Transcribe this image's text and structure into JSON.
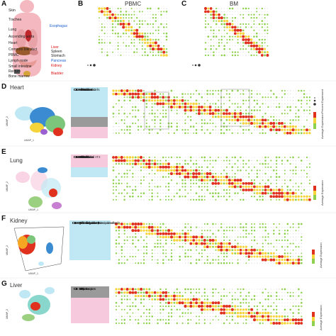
{
  "panels": {
    "A": {
      "label": "A"
    },
    "B": {
      "label": "B",
      "title": "PBMC"
    },
    "C": {
      "label": "C",
      "title": "BM"
    },
    "D": {
      "label": "D",
      "title": "Heart"
    },
    "E": {
      "label": "E",
      "title": "Lung"
    },
    "F": {
      "label": "F",
      "title": "Kidney"
    },
    "G": {
      "label": "G",
      "title": "Liver"
    }
  },
  "organs": [
    "Skin",
    "Trachea",
    "Lung",
    "Ascending aorta",
    "Heart",
    "Common bile duct",
    "PBMC",
    "Lymph node",
    "Small intestine",
    "Rectum",
    "Bone marrow",
    "Esophagus",
    "Liver",
    "Spleen",
    "Stomach",
    "Pancreas",
    "Kidney",
    "Bladder"
  ],
  "heart_legend": [
    "C0: EC1",
    "C1: EC2",
    "C2: EC3",
    "C3: Fibroblast",
    "C4: Fibroblast",
    "C5: Fibroblast",
    "C6: Fibroblast",
    "C7: Fibroblast",
    "C8: Mono/Mac1",
    "C11: Mono/Mac2",
    "C12: T/NK",
    "C13: Neuronal cells"
  ],
  "lung_legend": [
    "C0: AT1",
    "C1: Transitional AT2",
    "C2: AT1",
    "C3: Ciliated",
    "C4: Basal",
    "C5: Fibroblast",
    "C6: Endothelial",
    "C7: Mac 1",
    "C8: Mac 2",
    "C9: Mac 3",
    "C10: Mac 4",
    "C11: Mac 5",
    "C12: T",
    "C13: NK",
    "C14: B/Plasma"
  ],
  "kidney_legend": [
    "C0: Epithelial cells-1",
    "C1: Epithelial cells-2",
    "C2: Epithelial cells-3",
    "C3: Epithelial cells-4",
    "C4: Epithelial cells-5",
    "C5: Epithelial cells-6",
    "C6: Epithelial cells-7",
    "C7: Distal tubule cells",
    "C8: Collecting duct principal cells",
    "C9: Collecting duct intercalated cells",
    "C10: Mono/Mac",
    "C11: B",
    "C12: B"
  ],
  "liver_legend": [
    "C0: Hepatocytes",
    "C1: Hepatocytes",
    "C2: Mac 1",
    "C3: Mac 2",
    "C4: Mac 3",
    "C5: T",
    "C6: NK",
    "C7: EC",
    "C8: B",
    "C9: B/Plasma"
  ],
  "side_labels": {
    "percent_expressed": "Percent Expressed",
    "average_expression": "Average Expression",
    "umap1": "UMAP_1",
    "umap2": "UMAP_2"
  },
  "colors": {
    "low": "#8fd14f",
    "mid": "#f5d33a",
    "high": "#e0301e",
    "dot_grey": "#c8c8c8",
    "cyan_band": "#bfe8f4",
    "pink_band": "#f6c9dd",
    "grey_band": "#9a9a9a",
    "organ_pink": "#f4b9c0"
  }
}
